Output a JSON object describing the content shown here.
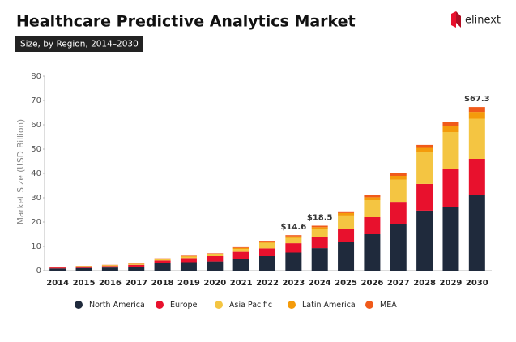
{
  "logo": "elinext",
  "chart_data": {
    "type": "stacked_bar",
    "title": "Healthcare Predictive Analytics Market",
    "subtitle": "Size, by Region, 2014–2030",
    "y_label": "Market Size (USD Billion)",
    "categories": [
      "2014",
      "2015",
      "2016",
      "2017",
      "2018",
      "2019",
      "2020",
      "2021",
      "2022",
      "2023",
      "2024",
      "2025",
      "2026",
      "2027",
      "2028",
      "2029",
      "2030"
    ],
    "series": [
      {
        "name": "North America",
        "color": "#1f2a3c",
        "values": [
          0.9,
          1.1,
          1.3,
          1.6,
          3.0,
          3.5,
          3.8,
          4.8,
          6.0,
          7.5,
          9.3,
          12,
          15,
          19.3,
          24.7,
          26,
          31
        ]
      },
      {
        "name": "Europe",
        "color": "#e8112d",
        "values": [
          0.4,
          0.5,
          0.6,
          0.8,
          1.2,
          1.7,
          2.2,
          3.0,
          3.2,
          3.8,
          4.5,
          5.3,
          7,
          9,
          11,
          16,
          15
        ]
      },
      {
        "name": "Asia Pacific",
        "color": "#f4c542",
        "values": [
          0.1,
          0.2,
          0.3,
          0.4,
          0.5,
          0.6,
          0.7,
          1.2,
          2.2,
          2.2,
          3.3,
          5.4,
          7,
          9.2,
          13,
          15,
          16.5
        ]
      },
      {
        "name": "Latin America",
        "color": "#f49b0b",
        "values": [
          0.05,
          0.1,
          0.1,
          0.1,
          0.2,
          0.2,
          0.3,
          0.4,
          0.5,
          0.6,
          0.8,
          1,
          1.2,
          1.5,
          1.8,
          2.5,
          2.8
        ]
      },
      {
        "name": "MEA",
        "color": "#f05a1a",
        "values": [
          0.05,
          0.1,
          0.1,
          0.1,
          0.2,
          0.2,
          0.2,
          0.3,
          0.4,
          0.5,
          0.6,
          0.7,
          0.8,
          1,
          1.2,
          1.8,
          2.0
        ]
      }
    ],
    "totals": {
      "categories": [
        "2023",
        "2024",
        "2030"
      ],
      "values": [
        14.6,
        18.5,
        67.3
      ],
      "value_labels": [
        "$14.6",
        "$18.5",
        "$67.3"
      ]
    },
    "ylim": [
      0,
      80
    ],
    "yticks": [
      0,
      10,
      20,
      30,
      40,
      50,
      60,
      70,
      80
    ],
    "grid": false,
    "legend": "bottom"
  }
}
